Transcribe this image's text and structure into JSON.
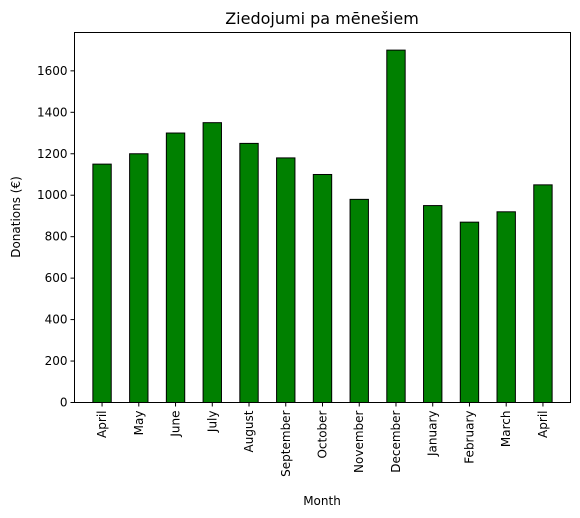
{
  "chart_data": {
    "type": "bar",
    "title": "Ziedojumi pa mēnešiem",
    "xlabel": "Month",
    "ylabel": "Donations (€)",
    "categories": [
      "April",
      "May",
      "June",
      "July",
      "August",
      "September",
      "October",
      "November",
      "December",
      "January",
      "February",
      "March",
      "April"
    ],
    "values": [
      1150,
      1200,
      1300,
      1350,
      1250,
      1180,
      1100,
      980,
      1700,
      950,
      870,
      920,
      1050
    ],
    "ylim": [
      0,
      1785
    ],
    "yticks": [
      0,
      200,
      400,
      600,
      800,
      1000,
      1200,
      1400,
      1600
    ],
    "bar_color": "#008000",
    "bar_edge_color": "#000000",
    "grid": false,
    "legend": "none"
  }
}
